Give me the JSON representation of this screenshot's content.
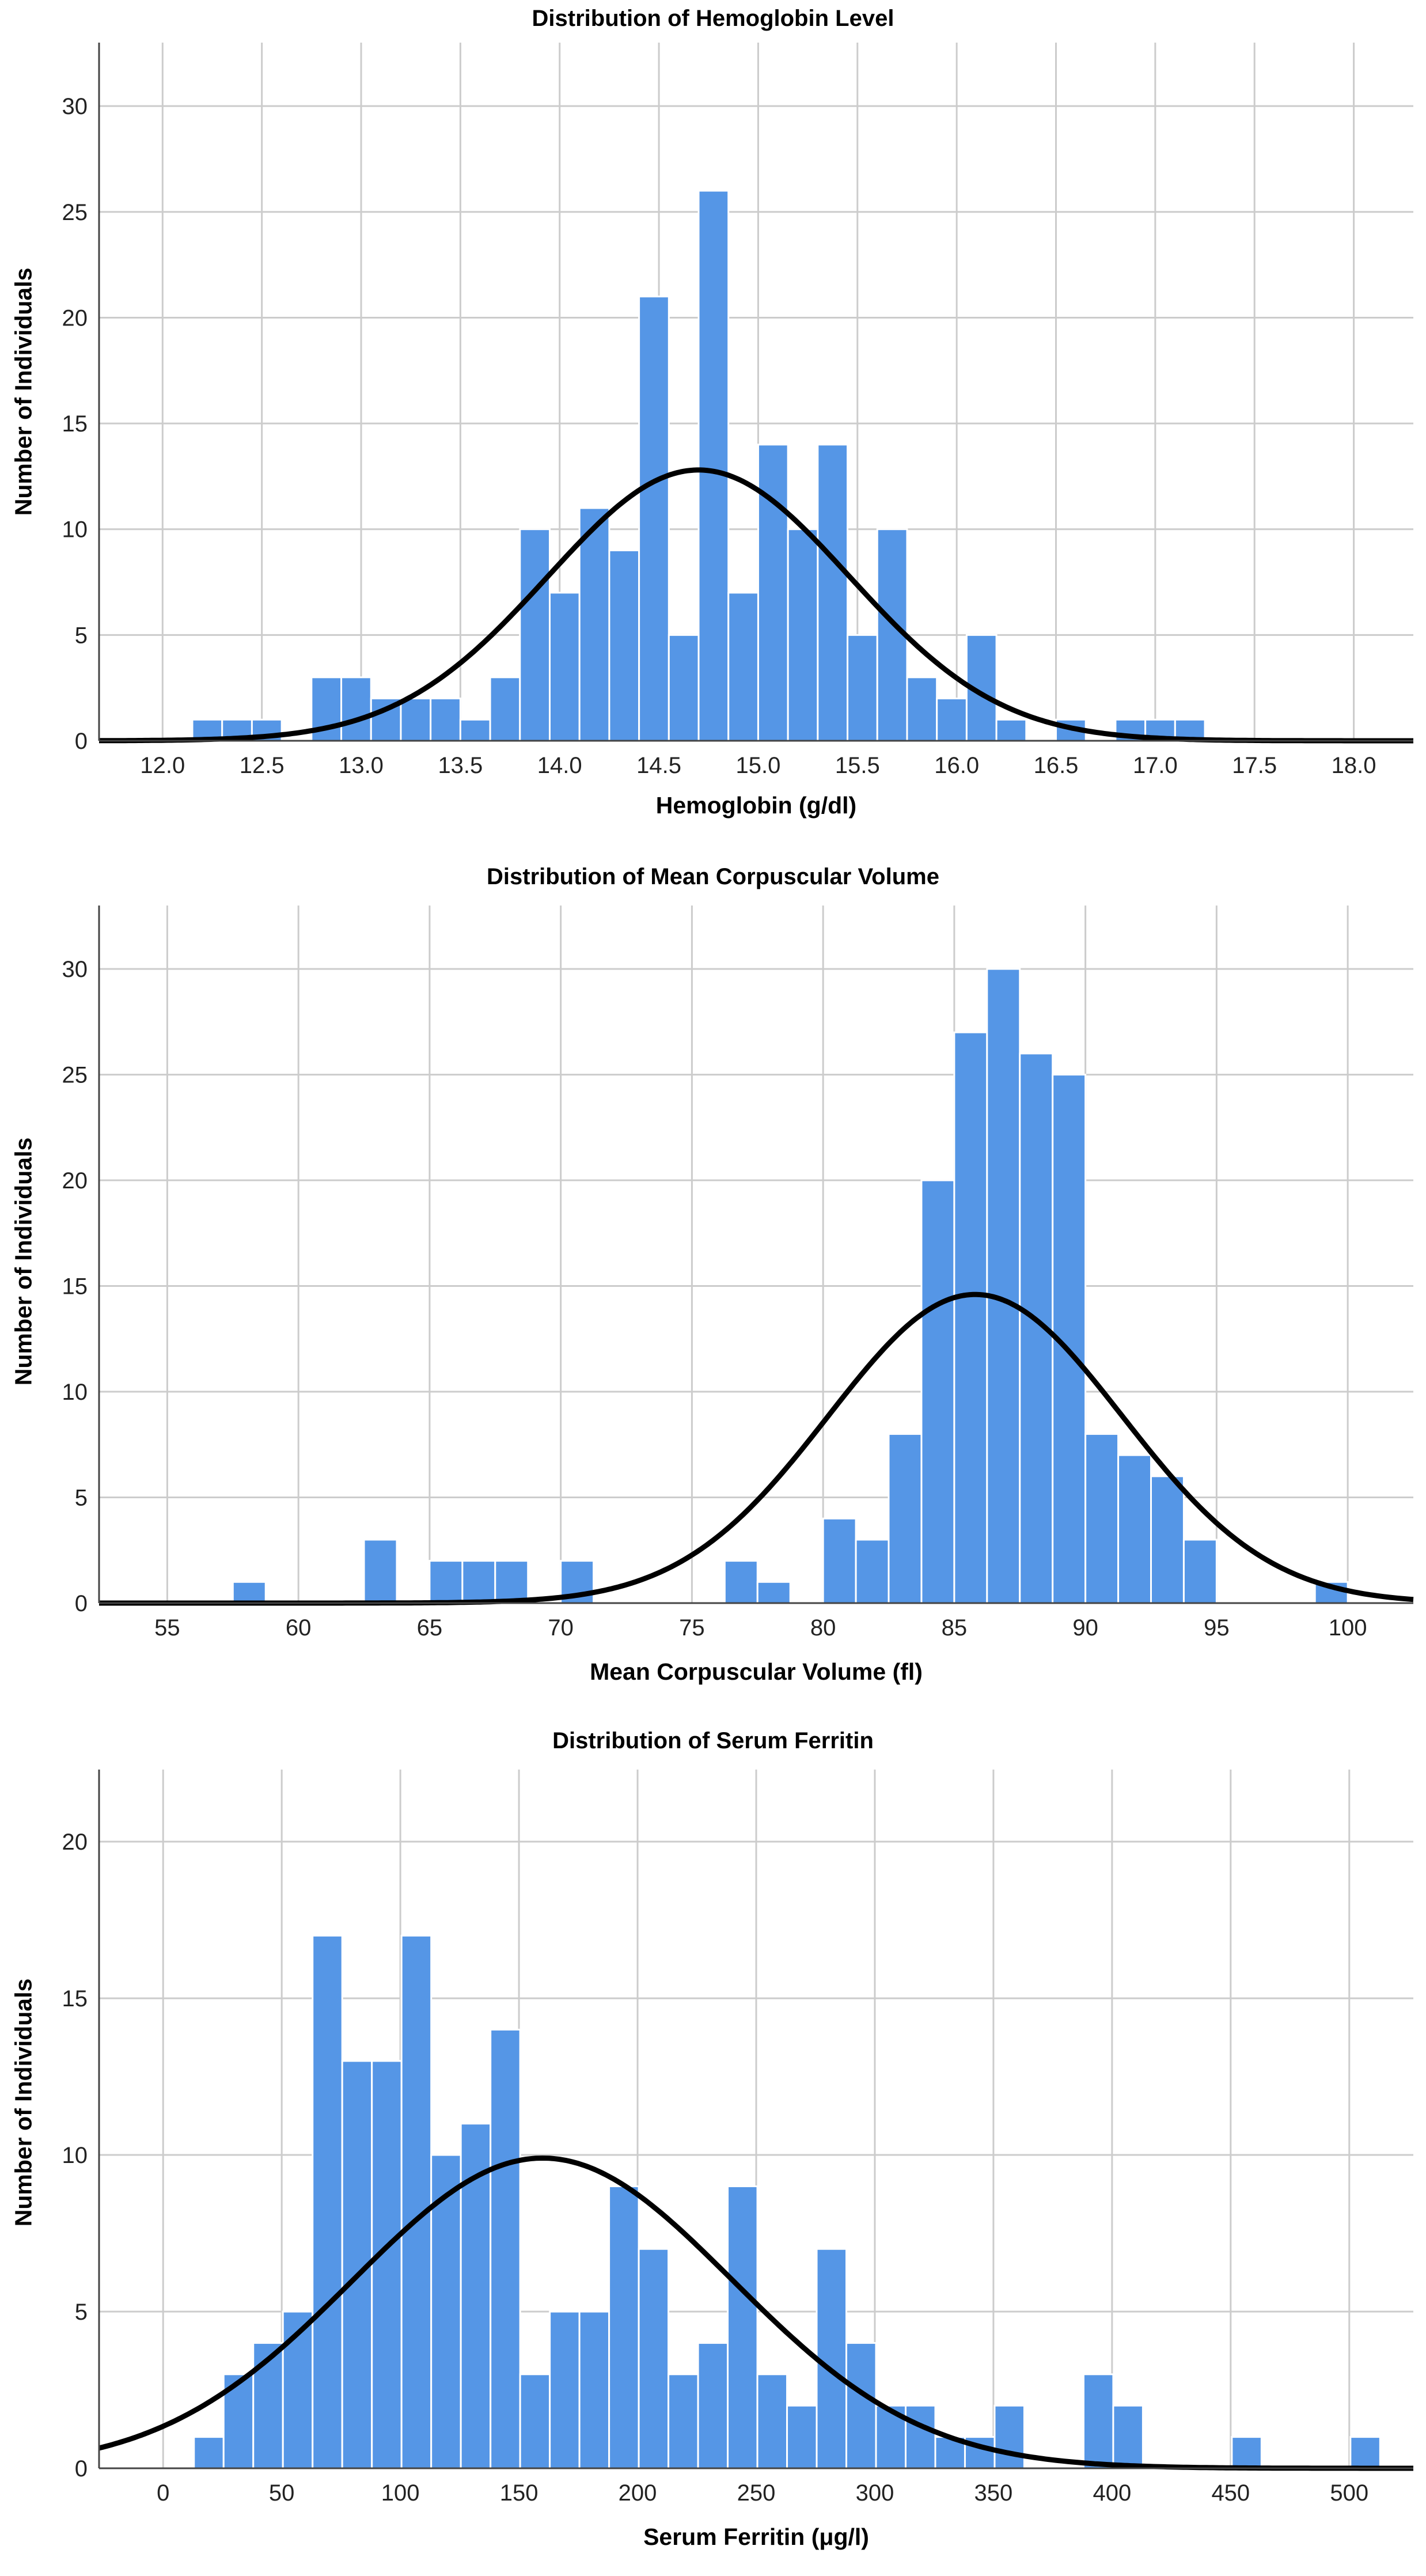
{
  "colors": {
    "bar_fill": "#5596E6",
    "bar_edge": "#ffffff",
    "curve": "#000000",
    "grid": "#cccccc",
    "axis": "#444444"
  },
  "chart_data": [
    {
      "type": "bar",
      "title": "Distribution of Hemoglobin Level",
      "xlabel": "Hemoglobin (g/dl)",
      "ylabel": "Number of Individuals",
      "xlim": [
        11.68,
        18.3
      ],
      "ylim": [
        0,
        33
      ],
      "x_ticks": [
        "12.0",
        "12.5",
        "13.0",
        "13.5",
        "14.0",
        "14.5",
        "15.0",
        "15.5",
        "16.0",
        "16.5",
        "17.0",
        "17.5",
        "18.0"
      ],
      "y_ticks": [
        "0",
        "5",
        "10",
        "15",
        "20",
        "25",
        "30"
      ],
      "bin_start": 12.15,
      "bin_width": 0.15,
      "values": [
        1,
        1,
        1,
        0,
        3,
        3,
        2,
        2,
        2,
        1,
        3,
        10,
        7,
        11,
        9,
        21,
        5,
        26,
        7,
        14,
        10,
        14,
        5,
        10,
        3,
        2,
        5,
        1,
        0,
        1,
        0,
        1,
        1,
        1
      ],
      "normal_curve": {
        "mean": 14.7,
        "sd": 0.76,
        "peak": 12.8
      }
    },
    {
      "type": "bar",
      "title": "Distribution of Mean Corpuscular Volume",
      "xlabel": "Mean Corpuscular Volume (fl)",
      "ylabel": "Number of Individuals",
      "xlim": [
        52.4,
        102.5
      ],
      "ylim": [
        0,
        33
      ],
      "x_ticks": [
        "55",
        "60",
        "65",
        "70",
        "75",
        "80",
        "85",
        "90",
        "95",
        "100"
      ],
      "y_ticks": [
        "0",
        "5",
        "10",
        "15",
        "20",
        "25",
        "30"
      ],
      "bin_start": 57.5,
      "bin_width": 1.25,
      "values": [
        1,
        0,
        0,
        0,
        3,
        0,
        2,
        2,
        2,
        0,
        2,
        0,
        0,
        0,
        0,
        2,
        1,
        0,
        4,
        3,
        8,
        20,
        27,
        30,
        26,
        25,
        8,
        7,
        6,
        3,
        0,
        0,
        0,
        1
      ],
      "normal_curve": {
        "mean": 85.8,
        "sd": 5.6,
        "peak": 14.6
      }
    },
    {
      "type": "bar",
      "title": "Distribution of Serum Ferritin",
      "xlabel": "Serum Ferritin (μg/l)",
      "ylabel": "Number of Individuals",
      "xlim": [
        -27,
        527
      ],
      "ylim": [
        0,
        22.3
      ],
      "x_ticks": [
        "0",
        "50",
        "100",
        "150",
        "200",
        "250",
        "300",
        "350",
        "400",
        "450",
        "500"
      ],
      "y_ticks": [
        "0",
        "5",
        "10",
        "15",
        "20"
      ],
      "bin_start": 13,
      "bin_width": 12.5,
      "values": [
        1,
        3,
        4,
        5,
        17,
        13,
        13,
        17,
        10,
        11,
        14,
        3,
        5,
        5,
        9,
        7,
        3,
        4,
        9,
        3,
        2,
        7,
        4,
        2,
        2,
        1,
        1,
        2,
        0,
        0,
        3,
        2,
        0,
        0,
        0,
        1,
        0,
        0,
        0,
        1
      ],
      "normal_curve": {
        "mean": 160,
        "sd": 80,
        "peak": 9.9
      }
    }
  ]
}
